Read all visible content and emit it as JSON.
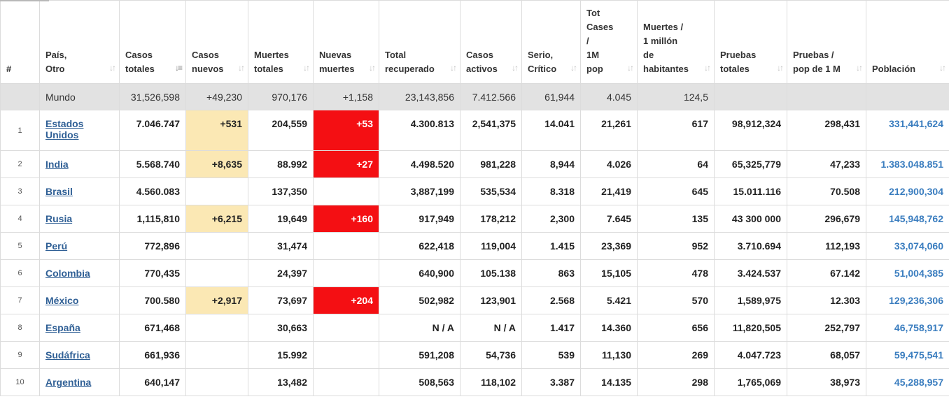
{
  "headers": [
    {
      "key": "idx",
      "lines": [
        "#"
      ],
      "sortable": false
    },
    {
      "key": "country",
      "lines": [
        "País,",
        "Otro"
      ],
      "sortable": true
    },
    {
      "key": "total_cases",
      "lines": [
        "Casos",
        "totales"
      ],
      "sortable": true,
      "active": true
    },
    {
      "key": "new_cases",
      "lines": [
        "Casos",
        "nuevos"
      ],
      "sortable": true
    },
    {
      "key": "total_deaths",
      "lines": [
        "Muertes",
        "totales"
      ],
      "sortable": true
    },
    {
      "key": "new_deaths",
      "lines": [
        "Nuevas",
        "muertes"
      ],
      "sortable": true
    },
    {
      "key": "total_recovered",
      "lines": [
        "Total",
        "recuperado"
      ],
      "sortable": true
    },
    {
      "key": "active_cases",
      "lines": [
        "Casos",
        "activos"
      ],
      "sortable": true
    },
    {
      "key": "critical",
      "lines": [
        "Serio,",
        "Crítico"
      ],
      "sortable": true
    },
    {
      "key": "cases_per_1m",
      "lines": [
        "Tot",
        "Cases",
        "/",
        "1M",
        "pop"
      ],
      "sortable": true
    },
    {
      "key": "deaths_per_1m",
      "lines": [
        "Muertes /",
        "1 millón",
        "de",
        "habitantes"
      ],
      "sortable": true
    },
    {
      "key": "total_tests",
      "lines": [
        "Pruebas",
        "totales"
      ],
      "sortable": true
    },
    {
      "key": "tests_per_1m",
      "lines": [
        "Pruebas /",
        "pop de 1 M"
      ],
      "sortable": true
    },
    {
      "key": "population",
      "lines": [
        "Población"
      ],
      "sortable": true
    }
  ],
  "world": {
    "name": "Mundo",
    "total_cases": "31,526,598",
    "new_cases": "+49,230",
    "total_deaths": "970,176",
    "new_deaths": "+1,158",
    "total_recovered": "23,143,856",
    "active_cases": "7.412.566",
    "critical": "61,944",
    "cases_per_1m": "4.045",
    "deaths_per_1m": "124,5",
    "total_tests": "",
    "tests_per_1m": "",
    "population": ""
  },
  "rows": [
    {
      "idx": "1",
      "country": "Estados Unidos",
      "country_lines": [
        "Estados",
        "Unidos"
      ],
      "total_cases": "7.046.747",
      "new_cases": "+531",
      "total_deaths": "204,559",
      "new_deaths": "+53",
      "total_recovered": "4.300.813",
      "active_cases": "2,541,375",
      "critical": "14.041",
      "cases_per_1m": "21,261",
      "deaths_per_1m": "617",
      "total_tests": "98,912,324",
      "tests_per_1m": "298,431",
      "population": "331,441,624"
    },
    {
      "idx": "2",
      "country": "India",
      "total_cases": "5.568.740",
      "new_cases": "+8,635",
      "total_deaths": "88.992",
      "new_deaths": "+27",
      "total_recovered": "4.498.520",
      "active_cases": "981,228",
      "critical": "8,944",
      "cases_per_1m": "4.026",
      "deaths_per_1m": "64",
      "total_tests": "65,325,779",
      "tests_per_1m": "47,233",
      "population": "1.383.048.851"
    },
    {
      "idx": "3",
      "country": "Brasil",
      "total_cases": "4.560.083",
      "new_cases": "",
      "total_deaths": "137,350",
      "new_deaths": "",
      "total_recovered": "3,887,199",
      "active_cases": "535,534",
      "critical": "8.318",
      "cases_per_1m": "21,419",
      "deaths_per_1m": "645",
      "total_tests": "15.011.116",
      "tests_per_1m": "70.508",
      "population": "212,900,304"
    },
    {
      "idx": "4",
      "country": "Rusia",
      "total_cases": "1,115,810",
      "new_cases": "+6,215",
      "total_deaths": "19,649",
      "new_deaths": "+160",
      "total_recovered": "917,949",
      "active_cases": "178,212",
      "critical": "2,300",
      "cases_per_1m": "7.645",
      "deaths_per_1m": "135",
      "total_tests": "43 300 000",
      "tests_per_1m": "296,679",
      "population": "145,948,762"
    },
    {
      "idx": "5",
      "country": "Perú",
      "total_cases": "772,896",
      "new_cases": "",
      "total_deaths": "31,474",
      "new_deaths": "",
      "total_recovered": "622,418",
      "active_cases": "119,004",
      "critical": "1.415",
      "cases_per_1m": "23,369",
      "deaths_per_1m": "952",
      "total_tests": "3.710.694",
      "tests_per_1m": "112,193",
      "population": "33,074,060"
    },
    {
      "idx": "6",
      "country": "Colombia",
      "total_cases": "770,435",
      "new_cases": "",
      "total_deaths": "24,397",
      "new_deaths": "",
      "total_recovered": "640,900",
      "active_cases": "105.138",
      "critical": "863",
      "cases_per_1m": "15,105",
      "deaths_per_1m": "478",
      "total_tests": "3.424.537",
      "tests_per_1m": "67.142",
      "population": "51,004,385"
    },
    {
      "idx": "7",
      "country": "México",
      "total_cases": "700.580",
      "new_cases": "+2,917",
      "total_deaths": "73,697",
      "new_deaths": "+204",
      "total_recovered": "502,982",
      "active_cases": "123,901",
      "critical": "2.568",
      "cases_per_1m": "5.421",
      "deaths_per_1m": "570",
      "total_tests": "1,589,975",
      "tests_per_1m": "12.303",
      "population": "129,236,306"
    },
    {
      "idx": "8",
      "country": "España",
      "total_cases": "671,468",
      "new_cases": "",
      "total_deaths": "30,663",
      "new_deaths": "",
      "total_recovered": "N / A",
      "active_cases": "N / A",
      "critical": "1.417",
      "cases_per_1m": "14.360",
      "deaths_per_1m": "656",
      "total_tests": "11,820,505",
      "tests_per_1m": "252,797",
      "population": "46,758,917"
    },
    {
      "idx": "9",
      "country": "Sudáfrica",
      "total_cases": "661,936",
      "new_cases": "",
      "total_deaths": "15.992",
      "new_deaths": "",
      "total_recovered": "591,208",
      "active_cases": "54,736",
      "critical": "539",
      "cases_per_1m": "11,130",
      "deaths_per_1m": "269",
      "total_tests": "4.047.723",
      "tests_per_1m": "68,057",
      "population": "59,475,541"
    },
    {
      "idx": "10",
      "country": "Argentina",
      "total_cases": "640,147",
      "new_cases": "",
      "total_deaths": "13,482",
      "new_deaths": "",
      "total_recovered": "508,563",
      "active_cases": "118,102",
      "critical": "3.387",
      "cases_per_1m": "14.135",
      "deaths_per_1m": "298",
      "total_tests": "1,765,069",
      "tests_per_1m": "38,973",
      "population": "45,288,957"
    }
  ],
  "icons": {
    "sort": "sort-arrows-icon",
    "sort_active": "sort-desc-icon"
  }
}
